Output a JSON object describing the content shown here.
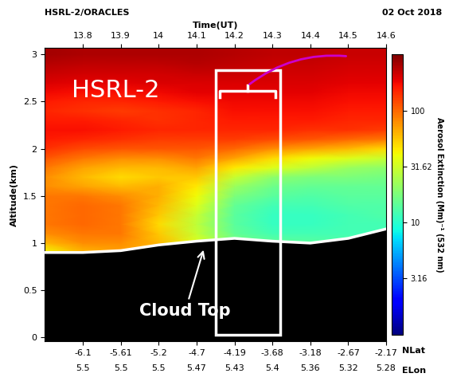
{
  "chart_data": {
    "type": "heatmap",
    "title": "HSRL-2/ORACLES",
    "x_label": "Time(UT)",
    "date": "02 Oct 2018",
    "y_label": "Altitude(km)",
    "x": [
      13.7,
      13.8,
      13.9,
      14.0,
      14.1,
      14.2,
      14.3,
      14.4,
      14.5,
      14.6
    ],
    "y": [
      0.9,
      1.0,
      1.1,
      1.2,
      1.3,
      1.4,
      1.5,
      1.6,
      1.7,
      1.8,
      1.9,
      2.0,
      2.1,
      2.2,
      2.3,
      2.4,
      2.5,
      2.6,
      2.7,
      2.8,
      2.9,
      3.0,
      3.1
    ],
    "cells": [
      [
        40,
        60,
        70,
        60,
        40,
        25,
        20,
        18,
        15,
        15
      ],
      [
        60,
        80,
        80,
        60,
        35,
        18,
        15,
        14,
        13,
        12
      ],
      [
        80,
        90,
        90,
        55,
        30,
        15,
        12,
        12,
        12,
        12
      ],
      [
        90,
        100,
        90,
        50,
        28,
        14,
        11,
        11,
        12,
        12
      ],
      [
        90,
        100,
        90,
        55,
        30,
        14,
        11,
        11,
        12,
        13
      ],
      [
        90,
        100,
        90,
        60,
        35,
        15,
        12,
        12,
        13,
        13
      ],
      [
        90,
        90,
        80,
        65,
        40,
        18,
        14,
        13,
        14,
        14
      ],
      [
        80,
        70,
        60,
        65,
        45,
        22,
        16,
        15,
        15,
        15
      ],
      [
        80,
        60,
        50,
        55,
        55,
        30,
        20,
        18,
        18,
        17
      ],
      [
        90,
        70,
        60,
        60,
        70,
        45,
        35,
        28,
        22,
        20
      ],
      [
        110,
        90,
        80,
        80,
        90,
        70,
        50,
        40,
        35,
        30
      ],
      [
        140,
        120,
        110,
        110,
        110,
        100,
        80,
        70,
        60,
        50
      ],
      [
        160,
        150,
        140,
        130,
        130,
        130,
        120,
        110,
        100,
        90
      ],
      [
        170,
        170,
        160,
        150,
        150,
        150,
        150,
        140,
        140,
        130
      ],
      [
        160,
        160,
        150,
        140,
        150,
        160,
        160,
        160,
        150,
        150
      ],
      [
        150,
        140,
        130,
        140,
        150,
        170,
        170,
        170,
        160,
        160
      ],
      [
        160,
        150,
        150,
        160,
        170,
        180,
        180,
        180,
        170,
        170
      ],
      [
        180,
        170,
        170,
        180,
        190,
        190,
        190,
        190,
        180,
        180
      ],
      [
        200,
        190,
        190,
        200,
        200,
        200,
        200,
        200,
        190,
        190
      ],
      [
        220,
        210,
        210,
        210,
        220,
        220,
        210,
        210,
        200,
        200
      ],
      [
        240,
        230,
        230,
        230,
        240,
        230,
        220,
        220,
        210,
        210
      ],
      [
        260,
        250,
        250,
        250,
        250,
        240,
        230,
        230,
        220,
        220
      ],
      [
        260,
        250,
        250,
        250,
        250,
        240,
        230,
        230,
        220,
        220
      ]
    ],
    "cloud_top": [
      0.9,
      0.9,
      0.92,
      0.98,
      1.02,
      1.05,
      1.02,
      1.0,
      1.05,
      1.15
    ],
    "xlim": [
      13.7,
      14.6
    ],
    "xticks": [
      13.8,
      13.9,
      14,
      14.1,
      14.2,
      14.3,
      14.4,
      14.5,
      14.6
    ],
    "ylim": [
      -0.04,
      3.07
    ],
    "yticks": [
      0,
      0.5,
      1,
      1.5,
      2,
      2.5,
      3
    ],
    "lat_label": "NLat",
    "lat_ticks": [
      {
        "value": 13.8,
        "label": "-6.1"
      },
      {
        "value": 13.9,
        "label": "-5.61"
      },
      {
        "value": 14.0,
        "label": "-5.2"
      },
      {
        "value": 14.1,
        "label": "-4.7"
      },
      {
        "value": 14.2,
        "label": "-4.19"
      },
      {
        "value": 14.3,
        "label": "-3.68"
      },
      {
        "value": 14.4,
        "label": "-3.18"
      },
      {
        "value": 14.5,
        "label": "-2.67"
      },
      {
        "value": 14.6,
        "label": "-2.17"
      }
    ],
    "lon_label": "ELon",
    "lon_ticks": [
      {
        "value": 13.8,
        "label": "5.5"
      },
      {
        "value": 13.9,
        "label": "5.5"
      },
      {
        "value": 14.0,
        "label": "5.5"
      },
      {
        "value": 14.1,
        "label": "5.47"
      },
      {
        "value": 14.2,
        "label": "5.43"
      },
      {
        "value": 14.3,
        "label": "5.4"
      },
      {
        "value": 14.4,
        "label": "5.36"
      },
      {
        "value": 14.5,
        "label": "5.32"
      },
      {
        "value": 14.6,
        "label": "5.28"
      }
    ],
    "colorbar": {
      "label": "Aerosol Extinction (Mm)⁻¹ (532 nm)",
      "range": [
        1,
        316.2
      ],
      "ticks": [
        3.16,
        10,
        31.62,
        100
      ],
      "log": true
    },
    "annotations": [
      {
        "text": "HSRL-2",
        "x": 13.77,
        "y": 2.62
      },
      {
        "text": "Cloud Top",
        "x": 14.07,
        "y": 0.28,
        "arrow_to": [
          14.12,
          0.95
        ]
      }
    ],
    "highlight": {
      "x": [
        14.15,
        14.32
      ],
      "y": [
        0.03,
        2.83
      ]
    }
  }
}
